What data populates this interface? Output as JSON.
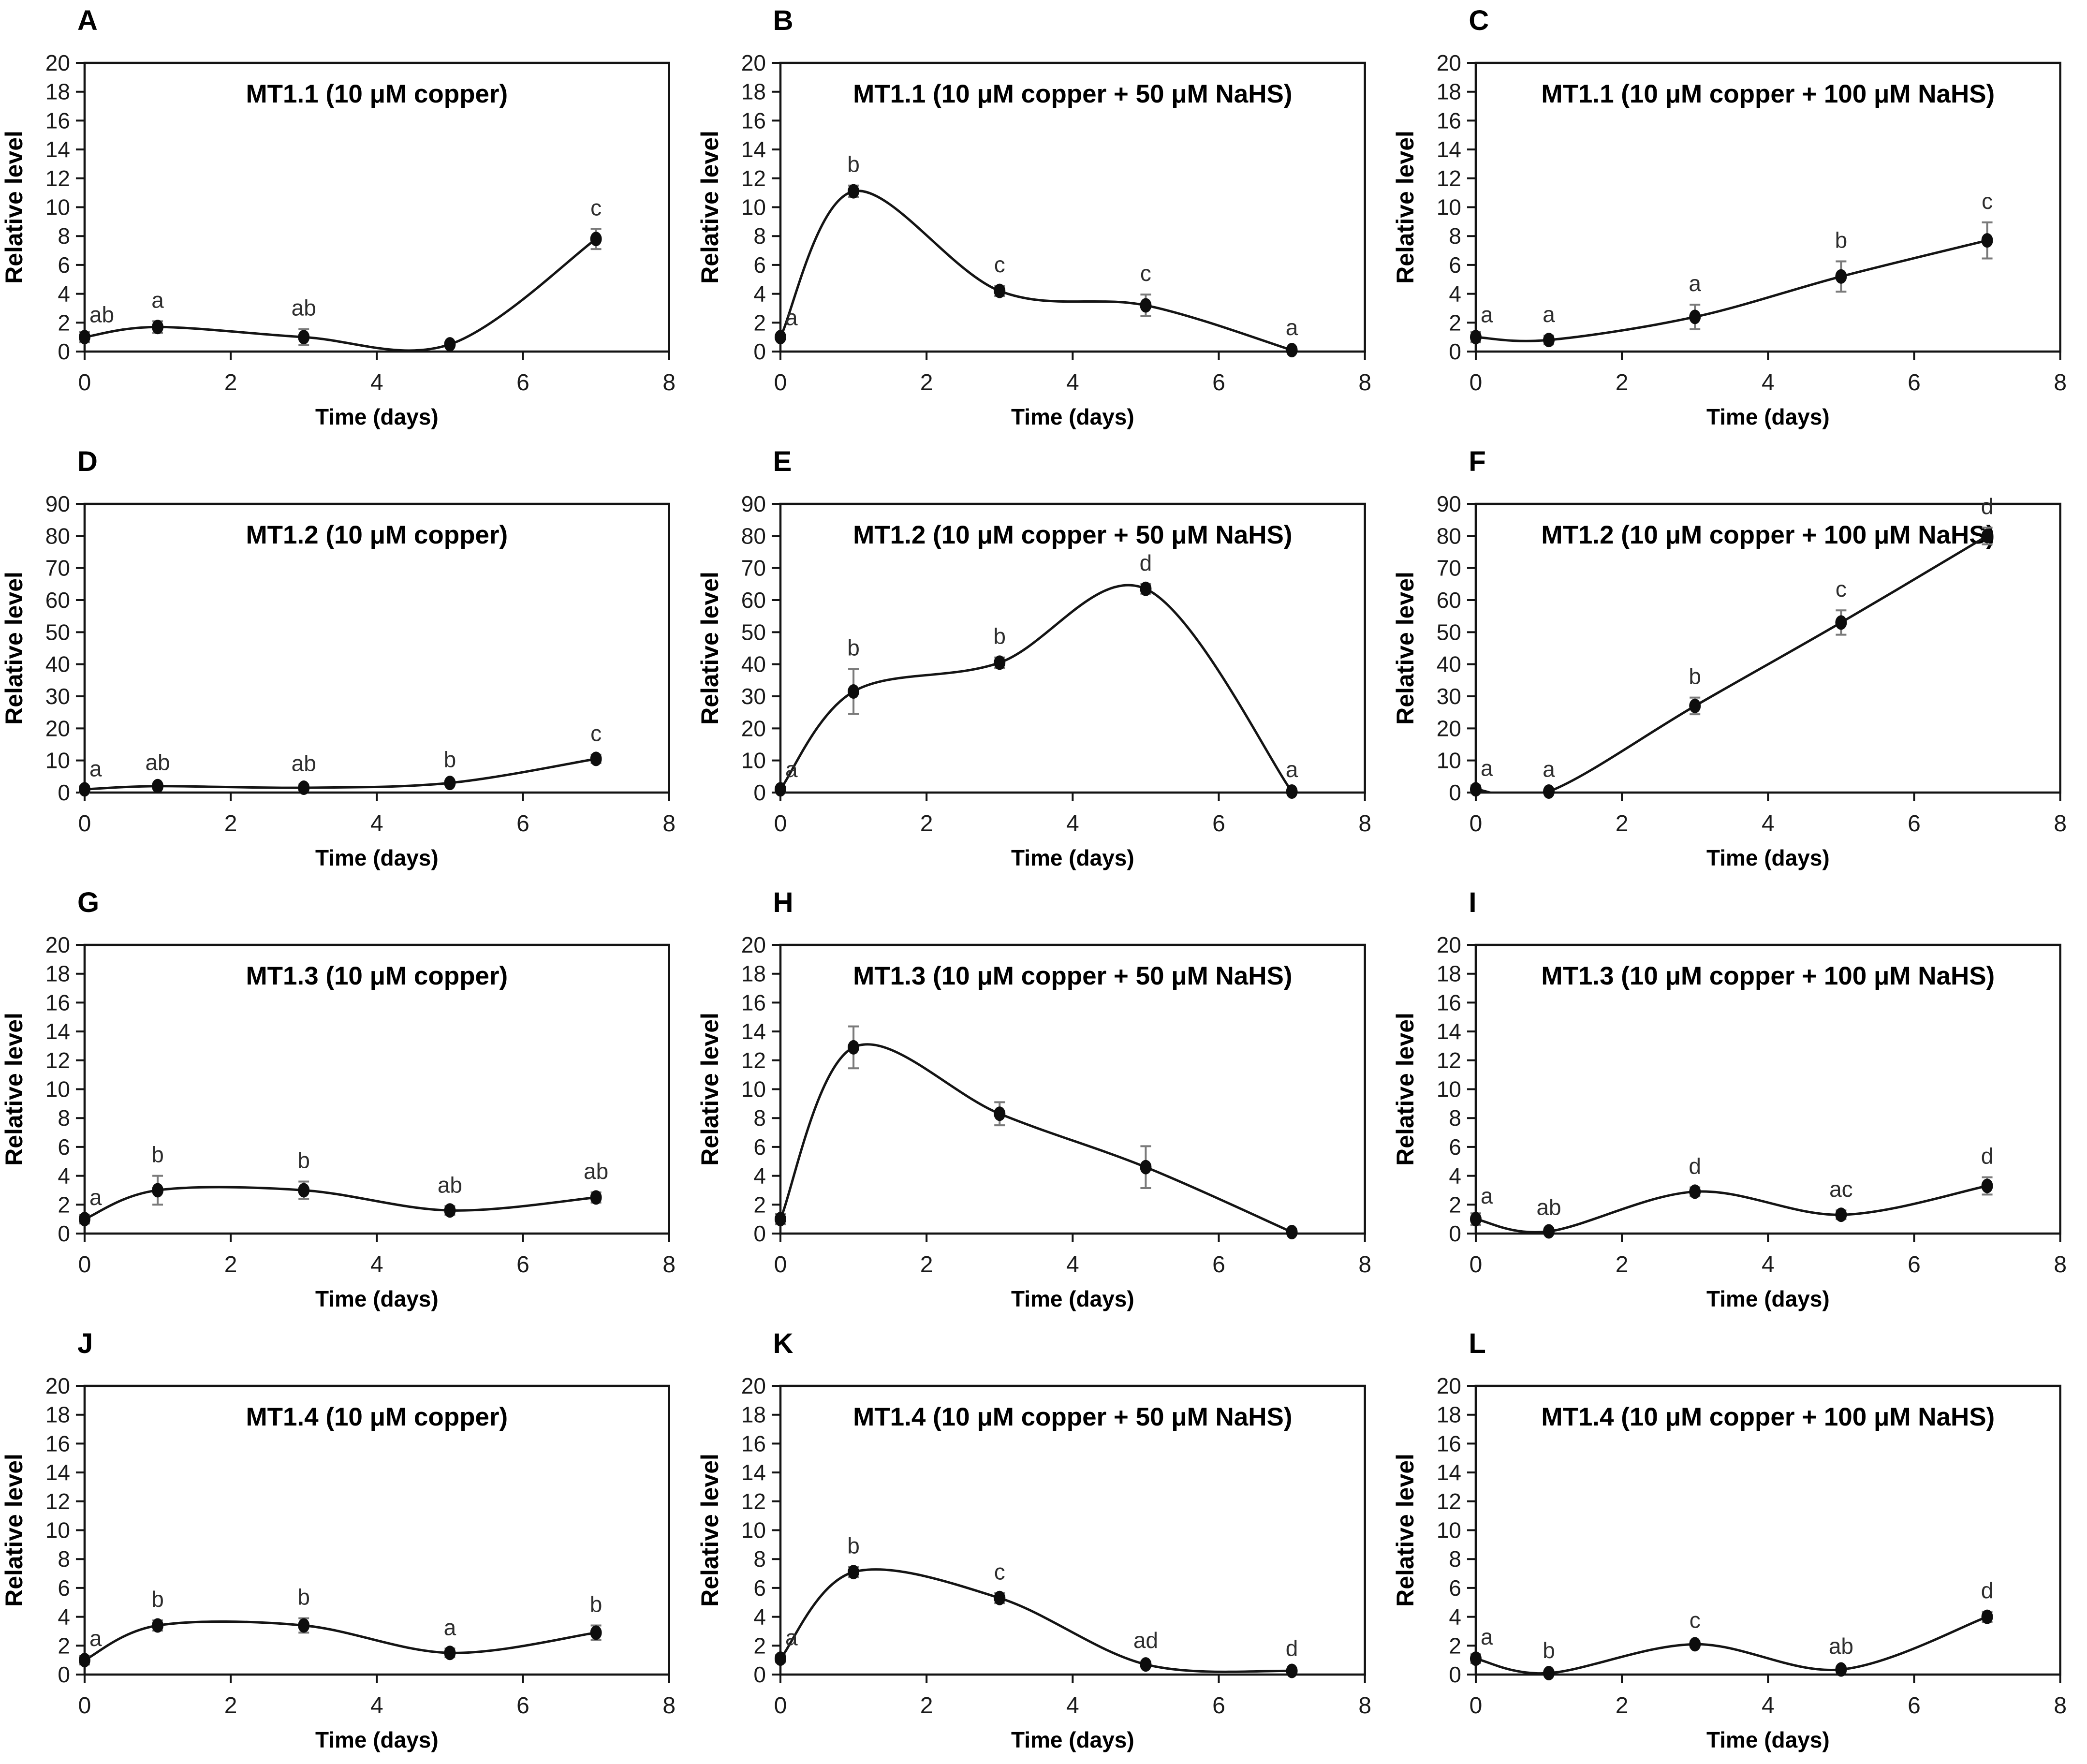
{
  "figure": {
    "xlabel": "Time (days)",
    "ylabel": "Relative level",
    "style": {
      "curve_color": "#141414",
      "point_color": "#0d0d0d",
      "error_bar_color": "#7a7a7a",
      "text_color": "#1a1a1a",
      "letter_color": "#2e2e2e",
      "frame_color": "#141414"
    }
  },
  "chart_data": [
    {
      "panel": "A",
      "type": "line",
      "title": "MT1.1 (10 μM copper)",
      "xlabel": "Time (days)",
      "ylabel": "Relative level",
      "x": [
        0,
        1,
        3,
        5,
        7
      ],
      "values": [
        1.0,
        1.7,
        1.0,
        0.5,
        7.8
      ],
      "errors": [
        0.35,
        0.4,
        0.55,
        0.15,
        0.7
      ],
      "point_labels": [
        "ab",
        "a",
        "ab",
        "",
        "c"
      ],
      "xlim": [
        0,
        8
      ],
      "xtick_step": 2,
      "ylim": [
        0,
        20
      ],
      "ytick_step": 2,
      "grid": false,
      "legend": null
    },
    {
      "panel": "B",
      "type": "line",
      "title": "MT1.1 (10 μM copper + 50 μM NaHS)",
      "xlabel": "Time (days)",
      "ylabel": "Relative level",
      "x": [
        0,
        1,
        3,
        5,
        7
      ],
      "values": [
        1.0,
        11.1,
        4.2,
        3.2,
        0.1
      ],
      "errors": [
        0.15,
        0.4,
        0.35,
        0.75,
        0.1
      ],
      "point_labels": [
        "a",
        "b",
        "c",
        "c",
        "a"
      ],
      "xlim": [
        0,
        8
      ],
      "xtick_step": 2,
      "ylim": [
        0,
        20
      ],
      "ytick_step": 2,
      "grid": false,
      "legend": null
    },
    {
      "panel": "C",
      "type": "line",
      "title": "MT1.1 (10 μM copper + 100 μM NaHS)",
      "xlabel": "Time (days)",
      "ylabel": "Relative level",
      "x": [
        0,
        1,
        3,
        5,
        7
      ],
      "values": [
        1.0,
        0.8,
        2.4,
        5.2,
        7.7
      ],
      "errors": [
        0.35,
        0.3,
        0.85,
        1.05,
        1.25
      ],
      "point_labels": [
        "a",
        "a",
        "a",
        "b",
        "c"
      ],
      "xlim": [
        0,
        8
      ],
      "xtick_step": 2,
      "ylim": [
        0,
        20
      ],
      "ytick_step": 2,
      "grid": false,
      "legend": null
    },
    {
      "panel": "D",
      "type": "line",
      "title": "MT1.2 (10 μM copper)",
      "xlabel": "Time (days)",
      "ylabel": "Relative level",
      "x": [
        0,
        1,
        3,
        5,
        7
      ],
      "values": [
        1.0,
        2.0,
        1.5,
        3.0,
        10.5
      ],
      "errors": [
        1.0,
        0.8,
        1.0,
        0.7,
        1.3
      ],
      "point_labels": [
        "a",
        "ab",
        "ab",
        "b",
        "c"
      ],
      "xlim": [
        0,
        8
      ],
      "xtick_step": 2,
      "ylim": [
        0,
        90
      ],
      "ytick_step": 10,
      "grid": false,
      "legend": null
    },
    {
      "panel": "E",
      "type": "line",
      "title": "MT1.2 (10 μM copper + 50 μM NaHS)",
      "xlabel": "Time (days)",
      "ylabel": "Relative level",
      "x": [
        0,
        1,
        3,
        5,
        7
      ],
      "values": [
        1.0,
        31.5,
        40.5,
        63.5,
        0.3
      ],
      "errors": [
        0.8,
        7.0,
        1.6,
        1.5,
        0.3
      ],
      "point_labels": [
        "a",
        "b",
        "b",
        "d",
        "a"
      ],
      "xlim": [
        0,
        8
      ],
      "xtick_step": 2,
      "ylim": [
        0,
        90
      ],
      "ytick_step": 10,
      "grid": false,
      "legend": null
    },
    {
      "panel": "F",
      "type": "line",
      "title": "MT1.2 (10 μM copper + 100 μM NaHS)",
      "xlabel": "Time (days)",
      "ylabel": "Relative level",
      "x": [
        0,
        1,
        3,
        5,
        7
      ],
      "values": [
        1.0,
        0.3,
        27.0,
        53.0,
        80.0
      ],
      "errors": [
        1.2,
        0.4,
        2.6,
        3.8,
        2.6
      ],
      "point_labels": [
        "a",
        "a",
        "b",
        "c",
        "d"
      ],
      "xlim": [
        0,
        8
      ],
      "xtick_step": 2,
      "ylim": [
        0,
        90
      ],
      "ytick_step": 10,
      "grid": false,
      "legend": null
    },
    {
      "panel": "G",
      "type": "line",
      "title": "MT1.3 (10 μM copper)",
      "xlabel": "Time (days)",
      "ylabel": "Relative level",
      "x": [
        0,
        1,
        3,
        5,
        7
      ],
      "values": [
        1.0,
        3.0,
        3.0,
        1.6,
        2.5
      ],
      "errors": [
        0.3,
        1.0,
        0.6,
        0.3,
        0.35
      ],
      "point_labels": [
        "a",
        "b",
        "b",
        "ab",
        "ab"
      ],
      "xlim": [
        0,
        8
      ],
      "xtick_step": 2,
      "ylim": [
        0,
        20
      ],
      "ytick_step": 2,
      "grid": false,
      "legend": null
    },
    {
      "panel": "H",
      "type": "line",
      "title": "MT1.3 (10 μM copper + 50 μM NaHS)",
      "xlabel": "Time (days)",
      "ylabel": "Relative level",
      "x": [
        0,
        1,
        3,
        5,
        7
      ],
      "values": [
        1.0,
        12.9,
        8.3,
        4.6,
        0.1
      ],
      "errors": [
        0.35,
        1.45,
        0.8,
        1.45,
        0.1
      ],
      "point_labels": [
        "",
        "",
        "",
        "",
        ""
      ],
      "xlim": [
        0,
        8
      ],
      "xtick_step": 2,
      "ylim": [
        0,
        20
      ],
      "ytick_step": 2,
      "grid": false,
      "legend": null
    },
    {
      "panel": "I",
      "type": "line",
      "title": "MT1.3 (10 μM copper + 100 μM NaHS)",
      "xlabel": "Time (days)",
      "ylabel": "Relative level",
      "x": [
        0,
        1,
        3,
        5,
        7
      ],
      "values": [
        1.0,
        0.15,
        2.9,
        1.3,
        3.3
      ],
      "errors": [
        0.4,
        0.2,
        0.3,
        0.3,
        0.6
      ],
      "point_labels": [
        "a",
        "ab",
        "d",
        "ac",
        "d"
      ],
      "xlim": [
        0,
        8
      ],
      "xtick_step": 2,
      "ylim": [
        0,
        20
      ],
      "ytick_step": 2,
      "grid": false,
      "legend": null
    },
    {
      "panel": "J",
      "type": "line",
      "title": "MT1.4 (10 μM copper)",
      "xlabel": "Time (days)",
      "ylabel": "Relative level",
      "x": [
        0,
        1,
        3,
        5,
        7
      ],
      "values": [
        1.0,
        3.4,
        3.4,
        1.5,
        2.9
      ],
      "errors": [
        0.3,
        0.35,
        0.5,
        0.3,
        0.5
      ],
      "point_labels": [
        "a",
        "b",
        "b",
        "a",
        "b"
      ],
      "xlim": [
        0,
        8
      ],
      "xtick_step": 2,
      "ylim": [
        0,
        20
      ],
      "ytick_step": 2,
      "grid": false,
      "legend": null
    },
    {
      "panel": "K",
      "type": "line",
      "title": "MT1.4 (10 μM copper + 50 μM NaHS)",
      "xlabel": "Time (days)",
      "ylabel": "Relative level",
      "x": [
        0,
        1,
        3,
        5,
        7
      ],
      "values": [
        1.1,
        7.1,
        5.3,
        0.7,
        0.25
      ],
      "errors": [
        0.25,
        0.35,
        0.35,
        0.2,
        0.1
      ],
      "point_labels": [
        "a",
        "b",
        "c",
        "ad",
        "d"
      ],
      "xlim": [
        0,
        8
      ],
      "xtick_step": 2,
      "ylim": [
        0,
        20
      ],
      "ytick_step": 2,
      "grid": false,
      "legend": null
    },
    {
      "panel": "L",
      "type": "line",
      "title": "MT1.4 (10 μM copper + 100 μM NaHS)",
      "xlabel": "Time (days)",
      "ylabel": "Relative level",
      "x": [
        0,
        1,
        3,
        5,
        7
      ],
      "values": [
        1.1,
        0.1,
        2.1,
        0.35,
        4.0
      ],
      "errors": [
        0.3,
        0.1,
        0.2,
        0.15,
        0.35
      ],
      "point_labels": [
        "a",
        "b",
        "c",
        "ab",
        "d"
      ],
      "xlim": [
        0,
        8
      ],
      "xtick_step": 2,
      "ylim": [
        0,
        20
      ],
      "ytick_step": 2,
      "grid": false,
      "legend": null
    }
  ]
}
